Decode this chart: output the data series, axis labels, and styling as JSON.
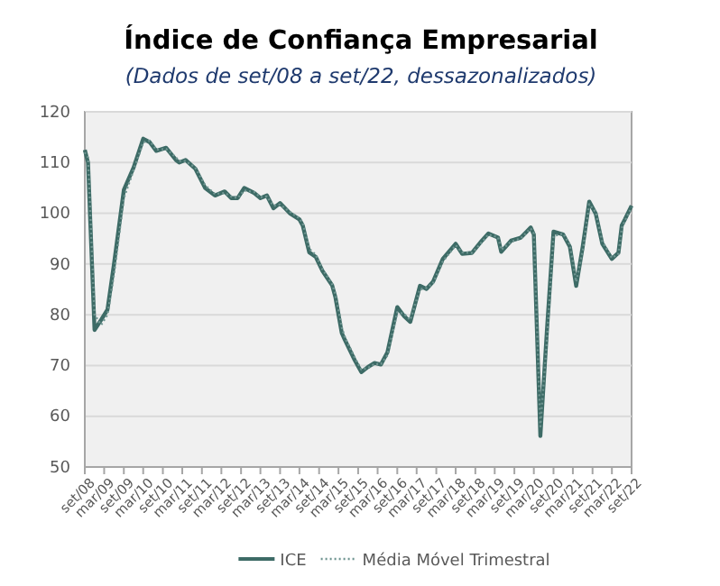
{
  "chart_data": {
    "type": "line",
    "title": "Índice de Confiança Empresarial",
    "subtitle": "(Dados de set/08 a set/22, dessazonalizados)",
    "x": [
      "2008-09",
      "2008-10",
      "2008-12",
      "2009-02",
      "2009-04",
      "2009-06",
      "2009-09",
      "2009-12",
      "2010-03",
      "2010-05",
      "2010-07",
      "2010-10",
      "2011-01",
      "2011-02",
      "2011-04",
      "2011-07",
      "2011-10",
      "2012-01",
      "2012-04",
      "2012-06",
      "2012-08",
      "2012-10",
      "2013-01",
      "2013-03",
      "2013-05",
      "2013-07",
      "2013-09",
      "2013-12",
      "2014-03",
      "2014-04",
      "2014-06",
      "2014-08",
      "2014-10",
      "2015-01",
      "2015-02",
      "2015-04",
      "2015-05",
      "2015-08",
      "2015-10",
      "2015-12",
      "2016-02",
      "2016-04",
      "2016-06",
      "2016-09",
      "2016-11",
      "2017-01",
      "2017-04",
      "2017-06",
      "2017-08",
      "2017-11",
      "2018-03",
      "2018-05",
      "2018-08",
      "2018-11",
      "2019-01",
      "2019-04",
      "2019-05",
      "2019-08",
      "2019-11",
      "2020-02",
      "2020-03",
      "2020-05",
      "2020-07",
      "2020-09",
      "2020-12",
      "2021-02",
      "2021-04",
      "2021-06",
      "2021-08",
      "2021-10",
      "2021-12",
      "2022-03",
      "2022-05",
      "2022-06",
      "2022-07",
      "2022-09"
    ],
    "series": [
      {
        "name": "ICE",
        "color": "#3d6b66",
        "line_style": "solid",
        "values": [
          112.5,
          110,
          77,
          79,
          81,
          90,
          104.6,
          109,
          114.7,
          114,
          112.3,
          112.9,
          110.5,
          110,
          110.5,
          108.8,
          105,
          103.5,
          104.3,
          103,
          103,
          105,
          104,
          103,
          103.5,
          101,
          102,
          100,
          98.8,
          97.6,
          92.3,
          91.4,
          88.7,
          85.8,
          83.4,
          76.4,
          75,
          71,
          68.7,
          69.7,
          70.5,
          70.2,
          72.6,
          81.5,
          79.8,
          78.6,
          85.7,
          85.1,
          86.5,
          91,
          94,
          92,
          92.2,
          94.6,
          96,
          95.2,
          92.4,
          94.6,
          95.2,
          97.2,
          95.8,
          56.1,
          76.8,
          96.4,
          95.8,
          93.4,
          85.7,
          93.4,
          102.3,
          99.9,
          94,
          91,
          92.2,
          97.6,
          98.8,
          101.5
        ]
      },
      {
        "name": "Média Móvel Trimestral",
        "color": "#6f9591",
        "line_style": "dotted",
        "values": [
          112,
          111,
          80,
          78,
          80,
          88,
          103,
          108.5,
          114,
          114.3,
          112.5,
          112.7,
          111,
          110.3,
          110.3,
          109,
          105.5,
          103.8,
          104,
          103.3,
          103,
          104.5,
          104.2,
          103.2,
          103.3,
          101.5,
          101.7,
          100.3,
          99,
          98,
          93,
          91.8,
          89,
          86,
          84,
          77.5,
          75.5,
          71.5,
          69.2,
          69.5,
          70.3,
          70.3,
          72,
          80.5,
          80.2,
          79,
          85,
          85.3,
          86.2,
          90.5,
          93.7,
          92.3,
          92.2,
          94.3,
          95.8,
          95.3,
          92.8,
          94.4,
          95.1,
          97,
          96,
          58,
          75,
          95.5,
          96,
          93.8,
          86.5,
          92.5,
          101.8,
          100.2,
          94.5,
          91.2,
          92,
          97,
          98.5,
          101.2
        ]
      }
    ],
    "xlim": [
      "2008-09",
      "2022-09"
    ],
    "xticks": [
      {
        "value": "2008-09",
        "label": "set/08"
      },
      {
        "value": "2009-03",
        "label": "mar/09"
      },
      {
        "value": "2009-09",
        "label": "set/09"
      },
      {
        "value": "2010-03",
        "label": "mar/10"
      },
      {
        "value": "2010-09",
        "label": "set/10"
      },
      {
        "value": "2011-03",
        "label": "mar/11"
      },
      {
        "value": "2011-09",
        "label": "set/11"
      },
      {
        "value": "2012-03",
        "label": "mar/12"
      },
      {
        "value": "2012-09",
        "label": "set/12"
      },
      {
        "value": "2013-03",
        "label": "mar/13"
      },
      {
        "value": "2013-09",
        "label": "set/13"
      },
      {
        "value": "2014-03",
        "label": "mar/14"
      },
      {
        "value": "2014-09",
        "label": "set/14"
      },
      {
        "value": "2015-03",
        "label": "mar/15"
      },
      {
        "value": "2015-09",
        "label": "set/15"
      },
      {
        "value": "2016-03",
        "label": "mar/16"
      },
      {
        "value": "2016-09",
        "label": "set/16"
      },
      {
        "value": "2017-03",
        "label": "mar/17"
      },
      {
        "value": "2017-09",
        "label": "set/17"
      },
      {
        "value": "2018-03",
        "label": "mar/18"
      },
      {
        "value": "2018-09",
        "label": "set/18"
      },
      {
        "value": "2019-03",
        "label": "mar/19"
      },
      {
        "value": "2019-09",
        "label": "set/19"
      },
      {
        "value": "2020-03",
        "label": "mar/20"
      },
      {
        "value": "2020-09",
        "label": "set/20"
      },
      {
        "value": "2021-03",
        "label": "mar/21"
      },
      {
        "value": "2021-09",
        "label": "set/21"
      },
      {
        "value": "2022-03",
        "label": "mar/22"
      },
      {
        "value": "2022-09",
        "label": "set/22"
      }
    ],
    "ylim": [
      50,
      120
    ],
    "yticks": [
      50,
      60,
      70,
      80,
      90,
      100,
      110,
      120
    ],
    "grid": "y",
    "legend": "bottom",
    "marker": "none"
  }
}
